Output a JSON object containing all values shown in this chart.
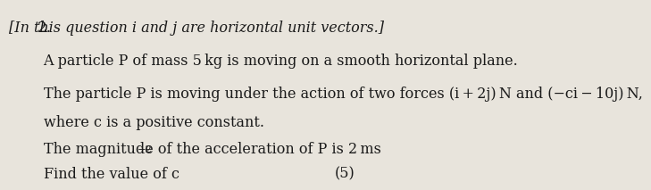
{
  "question_number": "2.",
  "header": "[In this question i and j are horizontal unit vectors.]",
  "line1": "A particle P of mass 5 kg is moving on a smooth horizontal plane.",
  "line2a": "The particle P is moving under the action of two forces (i + 2j) N and (−ci − 10j) N,",
  "line2b": "where c is a positive constant.",
  "line3": "The magnitude of the acceleration of P is 2 ms",
  "line3_super": "−2",
  "line4": "Find the value of c",
  "marks": "(5)",
  "bg_color": "#e8e4dc",
  "text_color": "#1a1a1a",
  "header_style": "italic",
  "body_fontsize": 11.5,
  "header_fontsize": 11.5,
  "qnum_fontsize": 12
}
